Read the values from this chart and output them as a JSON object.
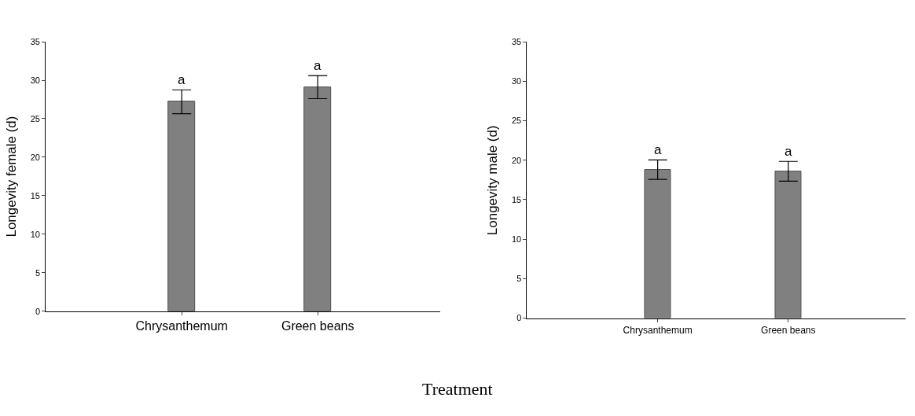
{
  "chart_data": [
    {
      "type": "bar",
      "ylabel": "Longevity female (d)",
      "categories": [
        "Chrysanthemum",
        "Green beans"
      ],
      "series": [
        {
          "color": "#808080",
          "values": [
            27.2,
            29.1
          ],
          "errors": [
            1.55,
            1.5
          ]
        }
      ],
      "ylim": [
        0,
        35
      ],
      "yticks": [
        0,
        5,
        10,
        15,
        20,
        25,
        30,
        35
      ],
      "annotations": [
        "a",
        "a",
        "Treatment"
      ]
    },
    {
      "type": "bar",
      "ylabel": "Longevity male (d)",
      "categories": [
        "Chrysanthemum",
        "Green beans"
      ],
      "series": [
        {
          "color": "#808080",
          "values": [
            18.8,
            18.6
          ],
          "errors": [
            1.23,
            1.25
          ]
        }
      ],
      "ylim": [
        0,
        35
      ],
      "yticks": [
        0,
        5,
        10,
        15,
        20,
        25,
        30,
        35
      ],
      "annotations": [
        "a",
        "a"
      ]
    }
  ]
}
